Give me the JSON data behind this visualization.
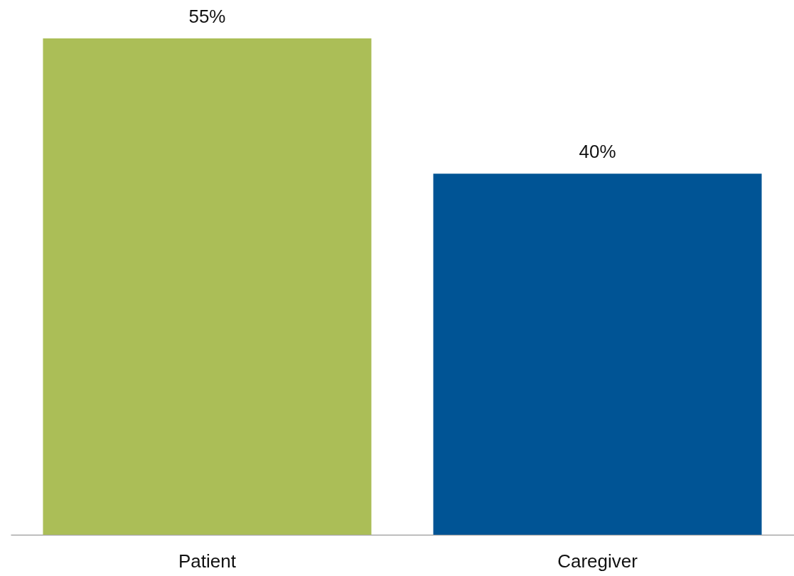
{
  "chart_data": {
    "type": "bar",
    "categories": [
      "Patient",
      "Caregiver"
    ],
    "values": [
      55,
      40
    ],
    "colors": [
      "#abbe57",
      "#005495"
    ],
    "value_labels": [
      "55%",
      "40%"
    ],
    "legend": false
  }
}
